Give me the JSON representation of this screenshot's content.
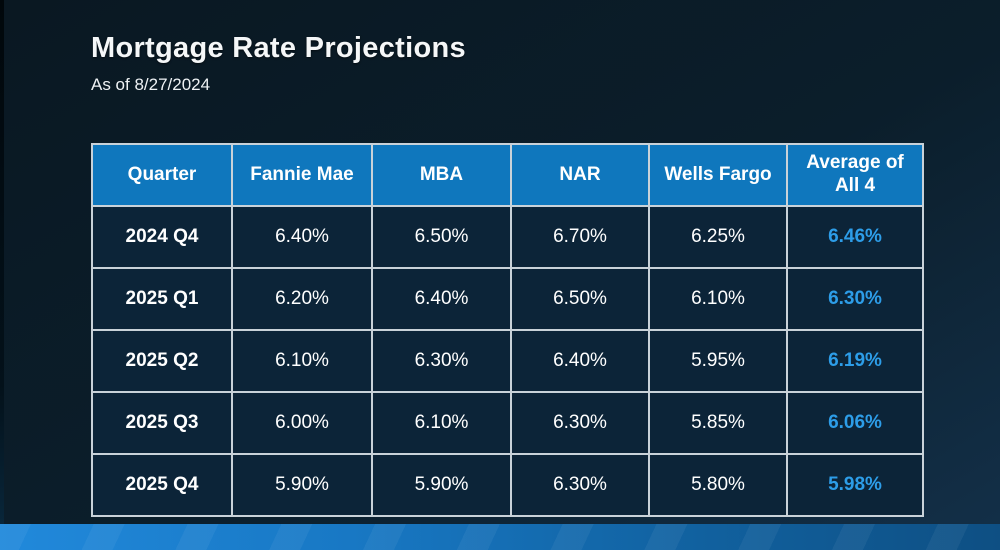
{
  "page": {
    "title": "Mortgage Rate Projections",
    "subtitle": "As of 8/27/2024"
  },
  "table": {
    "columns": [
      "Quarter",
      "Fannie Mae",
      "MBA",
      "NAR",
      "Wells Fargo",
      "Average of All 4"
    ],
    "rows": [
      {
        "quarter": "2024 Q4",
        "values": [
          "6.40%",
          "6.50%",
          "6.70%",
          "6.25%"
        ],
        "average": "6.46%"
      },
      {
        "quarter": "2025 Q1",
        "values": [
          "6.20%",
          "6.40%",
          "6.50%",
          "6.10%"
        ],
        "average": "6.30%"
      },
      {
        "quarter": "2025 Q2",
        "values": [
          "6.10%",
          "6.30%",
          "6.40%",
          "5.95%"
        ],
        "average": "6.19%"
      },
      {
        "quarter": "2025 Q3",
        "values": [
          "6.00%",
          "6.10%",
          "6.30%",
          "5.85%"
        ],
        "average": "6.06%"
      },
      {
        "quarter": "2025 Q4",
        "values": [
          "5.90%",
          "5.90%",
          "6.30%",
          "5.80%"
        ],
        "average": "5.98%"
      }
    ]
  },
  "colors": {
    "background_top": "#0a1822",
    "background_bottom": "#133049",
    "header_bg": "#0f77bd",
    "cell_bg": "#0c2438",
    "table_border": "#c9d2d9",
    "average_text": "#2d9de8",
    "footer_gradient_left": "#2189db",
    "footer_gradient_right": "#0e4f83"
  }
}
